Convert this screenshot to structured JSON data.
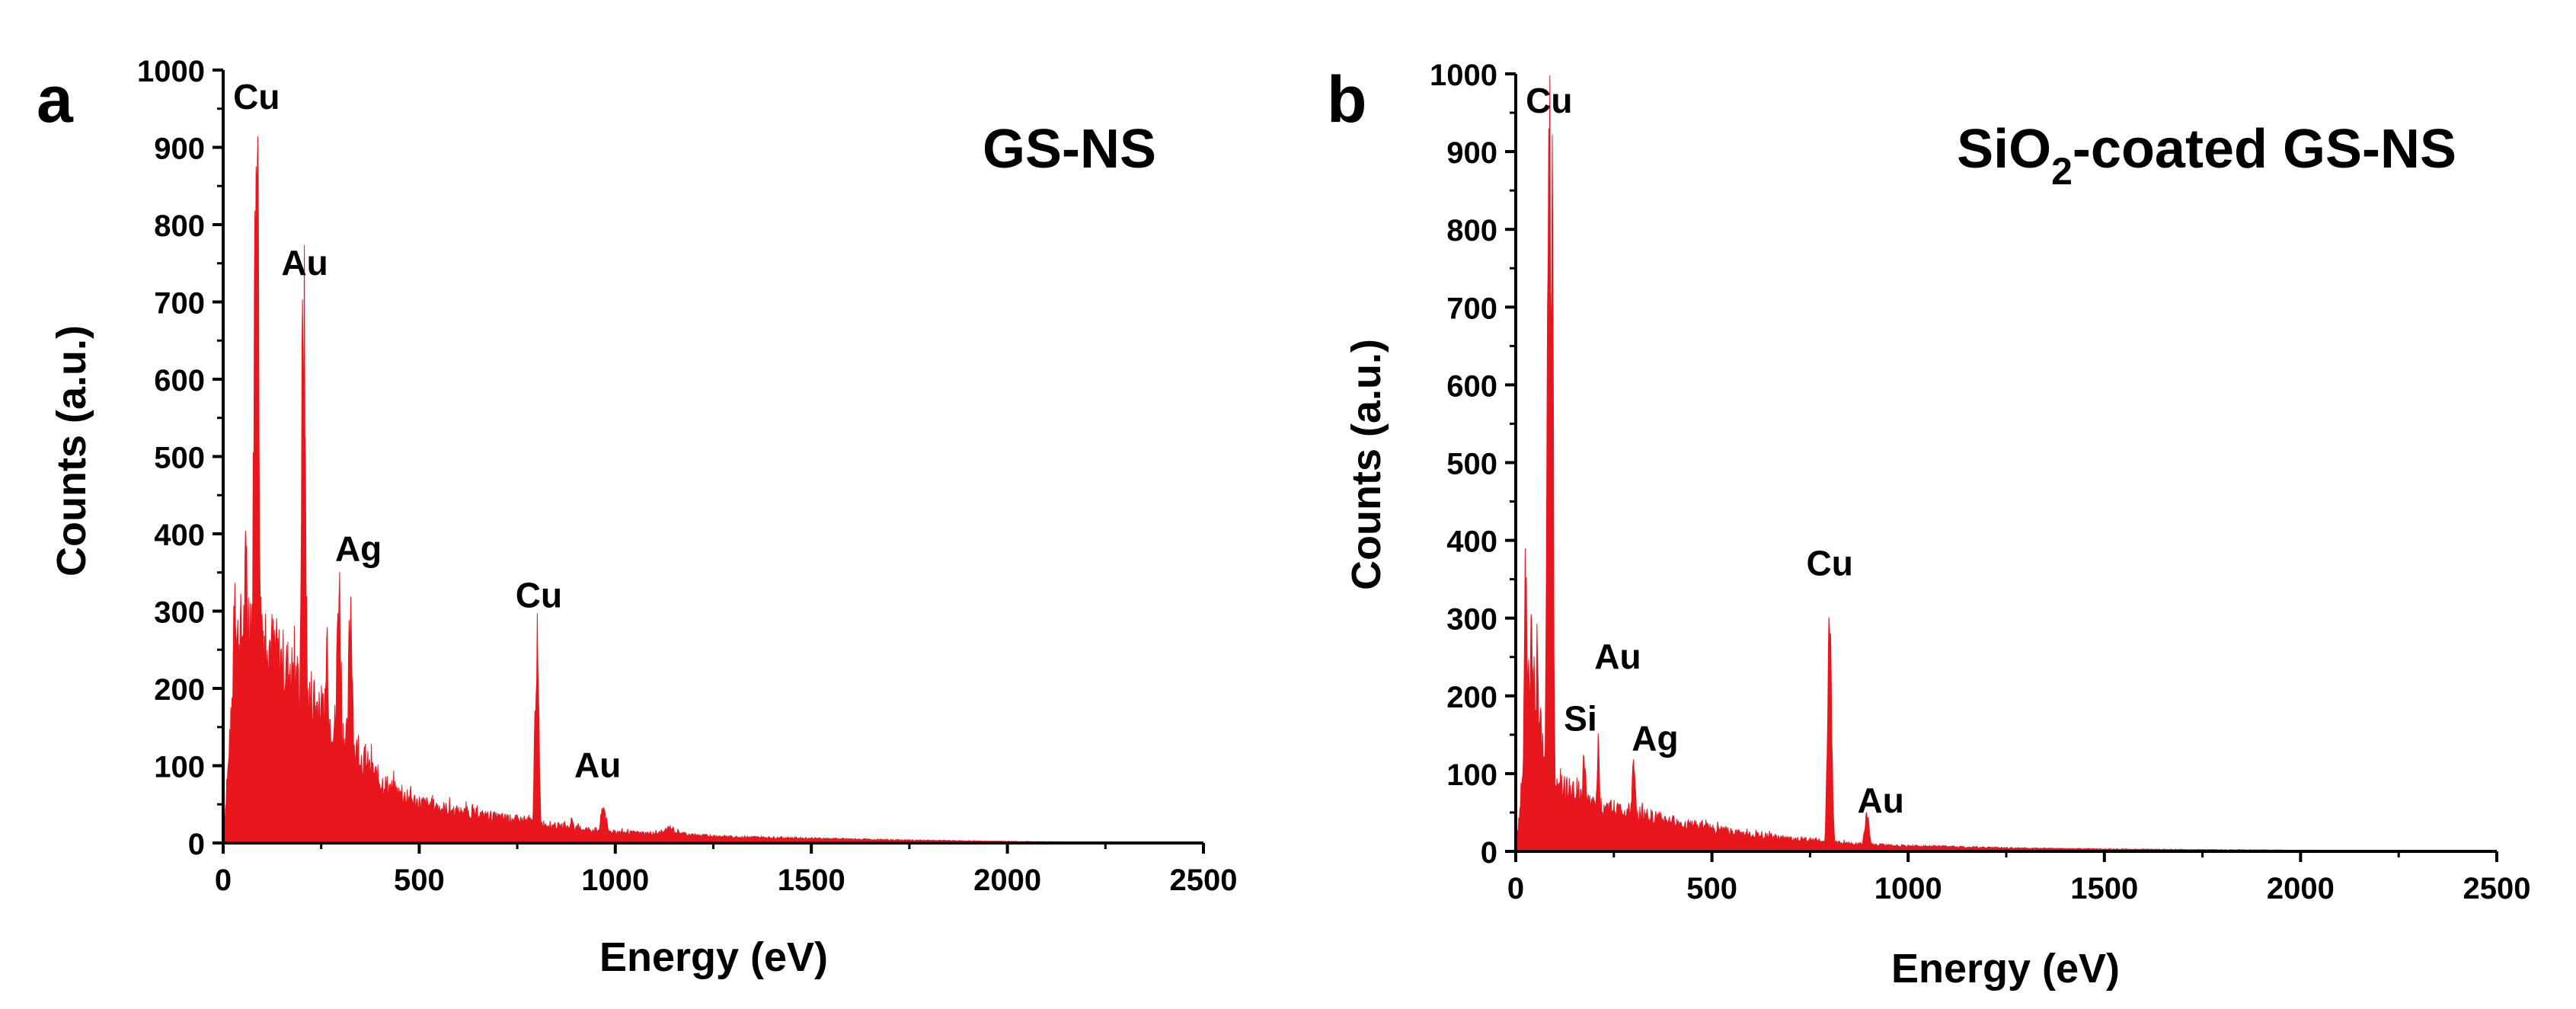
{
  "figure": {
    "panels": [
      "a",
      "b"
    ],
    "spectrum_color": "#e8161d",
    "axis_color": "#000000"
  },
  "chart_data": [
    {
      "panel": "a",
      "type": "area",
      "title": "GS-NS",
      "xlabel": "Energy (eV)",
      "ylabel": "Counts (a.u.)",
      "xlim": [
        0,
        2500
      ],
      "ylim": [
        0,
        1000
      ],
      "xticks": [
        0,
        500,
        1000,
        1500,
        2000,
        2500
      ],
      "yticks": [
        0,
        100,
        200,
        300,
        400,
        500,
        600,
        700,
        800,
        900,
        1000
      ],
      "grid": false,
      "legend": "none",
      "annotations": [
        {
          "label": "Cu",
          "energy": 85,
          "counts": 950
        },
        {
          "label": "Au",
          "energy": 208,
          "counts": 735
        },
        {
          "label": "Ag",
          "energy": 345,
          "counts": 365
        },
        {
          "label": "Cu",
          "energy": 805,
          "counts": 305
        },
        {
          "label": "Au",
          "energy": 955,
          "counts": 85
        }
      ],
      "series": [
        {
          "name": "spectrum",
          "background": [
            [
              20,
              150
            ],
            [
              30,
              250
            ],
            [
              50,
              275
            ],
            [
              70,
              300
            ],
            [
              100,
              280
            ],
            [
              130,
              245
            ],
            [
              160,
              225
            ],
            [
              200,
              200
            ],
            [
              250,
              170
            ],
            [
              300,
              145
            ],
            [
              350,
              110
            ],
            [
              400,
              80
            ],
            [
              450,
              62
            ],
            [
              500,
              52
            ],
            [
              600,
              40
            ],
            [
              700,
              33
            ],
            [
              780,
              28
            ],
            [
              850,
              22
            ],
            [
              900,
              19
            ],
            [
              1000,
              14
            ],
            [
              1100,
              12
            ],
            [
              1140,
              15
            ],
            [
              1200,
              10
            ],
            [
              1300,
              8
            ],
            [
              1500,
              6
            ],
            [
              1700,
              4
            ],
            [
              2000,
              2
            ],
            [
              2200,
              1
            ],
            [
              2500,
              0
            ]
          ],
          "peaks": [
            [
              30,
              360,
              5
            ],
            [
              58,
              345,
              6
            ],
            [
              85,
              900,
              7
            ],
            [
              205,
              680,
              6
            ],
            [
              225,
              190,
              5
            ],
            [
              265,
              260,
              5
            ],
            [
              295,
              330,
              6
            ],
            [
              325,
              310,
              6
            ],
            [
              800,
              250,
              5
            ],
            [
              890,
              30,
              6
            ],
            [
              970,
              45,
              8
            ],
            [
              1140,
              20,
              15
            ]
          ]
        }
      ]
    },
    {
      "panel": "b",
      "type": "area",
      "title": "SiO2-coated GS-NS",
      "title_parts": {
        "main": "SiO",
        "sub": "2",
        "rest": "-coated GS-NS"
      },
      "xlabel": "Energy (eV)",
      "ylabel": "Counts (a.u.)",
      "xlim": [
        0,
        2500
      ],
      "ylim": [
        0,
        1000
      ],
      "xticks": [
        0,
        500,
        1000,
        1500,
        2000,
        2500
      ],
      "yticks": [
        0,
        100,
        200,
        300,
        400,
        500,
        600,
        700,
        800,
        900,
        1000
      ],
      "grid": false,
      "legend": "none",
      "annotations": [
        {
          "label": "Cu",
          "energy": 85,
          "counts": 950
        },
        {
          "label": "Au",
          "energy": 260,
          "counts": 235
        },
        {
          "label": "Si",
          "energy": 165,
          "counts": 155
        },
        {
          "label": "Ag",
          "energy": 355,
          "counts": 130
        },
        {
          "label": "Cu",
          "energy": 800,
          "counts": 355
        },
        {
          "label": "Au",
          "energy": 930,
          "counts": 50
        }
      ],
      "series": [
        {
          "name": "spectrum",
          "background": [
            [
              20,
              100
            ],
            [
              30,
              200
            ],
            [
              45,
              230
            ],
            [
              60,
              160
            ],
            [
              75,
              120
            ],
            [
              100,
              90
            ],
            [
              130,
              80
            ],
            [
              160,
              70
            ],
            [
              200,
              60
            ],
            [
              250,
              55
            ],
            [
              300,
              50
            ],
            [
              350,
              44
            ],
            [
              400,
              38
            ],
            [
              450,
              33
            ],
            [
              500,
              29
            ],
            [
              550,
              25
            ],
            [
              600,
              21
            ],
            [
              650,
              19
            ],
            [
              700,
              16
            ],
            [
              750,
              15
            ],
            [
              790,
              13
            ],
            [
              850,
              10
            ],
            [
              900,
              9
            ],
            [
              1000,
              7
            ],
            [
              1100,
              6
            ],
            [
              1300,
              4
            ],
            [
              1500,
              3
            ],
            [
              1800,
              2
            ],
            [
              2200,
              1
            ],
            [
              2500,
              0
            ]
          ],
          "peaks": [
            [
              25,
              390,
              4
            ],
            [
              40,
              300,
              4
            ],
            [
              55,
              270,
              4
            ],
            [
              85,
              905,
              5
            ],
            [
              92,
              790,
              4
            ],
            [
              175,
              125,
              5
            ],
            [
              210,
              125,
              5
            ],
            [
              300,
              100,
              6
            ],
            [
              800,
              320,
              5
            ],
            [
              895,
              50,
              6
            ]
          ]
        }
      ]
    }
  ]
}
